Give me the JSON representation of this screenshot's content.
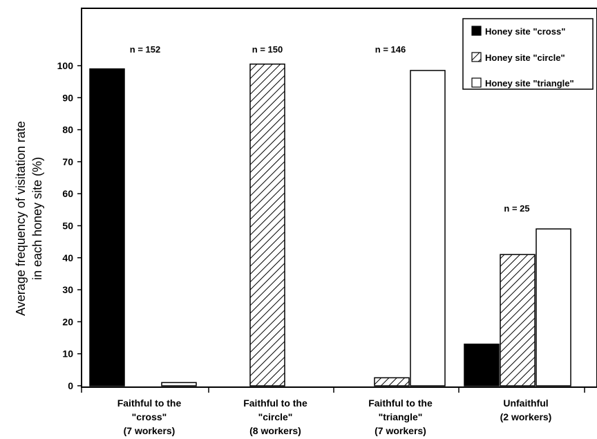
{
  "chart_data": {
    "type": "bar",
    "title": "",
    "xlabel": "",
    "ylabel_lines": [
      "Average frequency of visitation rate",
      "in each honey site (%)"
    ],
    "ylim": [
      0,
      100
    ],
    "yticks": [
      0,
      10,
      20,
      30,
      40,
      50,
      60,
      70,
      80,
      90,
      100
    ],
    "grid": false,
    "legend_position": "top-right",
    "categories": [
      [
        "Faithful to the",
        "\"cross\"",
        "(7 workers)"
      ],
      [
        "Faithful to the",
        "\"circle\"",
        "(8 workers)"
      ],
      [
        "Faithful to the",
        "\"triangle\"",
        "(7 workers)"
      ],
      [
        "Unfaithful",
        "(2 workers)"
      ]
    ],
    "series": [
      {
        "name": "Honey site \"cross\"",
        "fill": "solid-black",
        "values": [
          99,
          0,
          0,
          13
        ]
      },
      {
        "name": "Honey site \"circle\"",
        "fill": "hatched",
        "values": [
          0,
          100.5,
          2.5,
          41
        ]
      },
      {
        "name": "Honey site \"triangle\"",
        "fill": "white",
        "values": [
          1,
          0,
          98.5,
          49
        ]
      }
    ],
    "annotations": [
      "n = 152",
      "n = 150",
      "n = 146",
      "n = 25"
    ],
    "colors": {
      "axis": "#000000",
      "solid": "#000000",
      "white": "#ffffff"
    }
  }
}
